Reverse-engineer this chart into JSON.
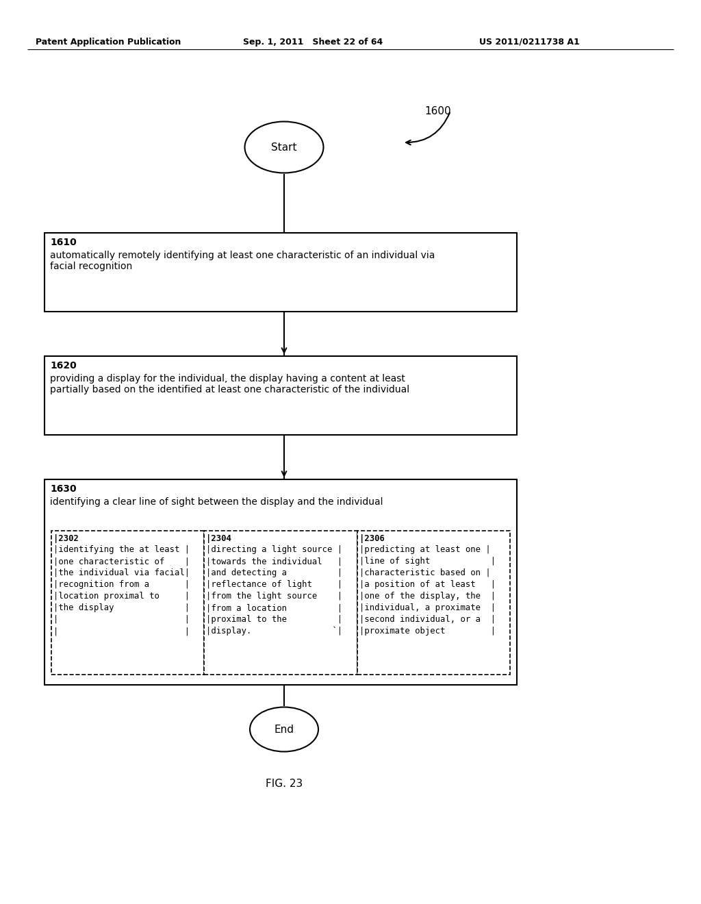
{
  "header_left": "Patent Application Publication",
  "header_mid": "Sep. 1, 2011   Sheet 22 of 64",
  "header_right": "US 2011/0211738 A1",
  "fig_label": "FIG. 23",
  "diagram_label": "1600",
  "start_label": "Start",
  "end_label": "End",
  "box1_num": "1610",
  "box1_text": "automatically remotely identifying at least one characteristic of an individual via\nfacial recognition",
  "box2_num": "1620",
  "box2_text": "providing a display for the individual, the display having a content at least\npartially based on the identified at least one characteristic of the individual",
  "box3_num": "1630",
  "box3_text": "identifying a clear line of sight between the display and the individual",
  "sub1_num": "|2302",
  "sub1_lines": [
    "|identifying the at least |",
    "|one characteristic of    |",
    "|the individual via facial|",
    "|recognition from a       |",
    "|location proximal to     |",
    "|the display              |",
    "|                         |",
    "|                         |"
  ],
  "sub2_num": "|2304",
  "sub2_lines": [
    "|directing a light source |",
    "|towards the individual   |",
    "|and detecting a          |",
    "|reflectance of light     |",
    "|from the light source    |",
    "|from a location          |",
    "|proximal to the          |",
    "|display.                `|"
  ],
  "sub3_num": "|2306",
  "sub3_lines": [
    "|predicting at least one |",
    "|line of sight            |",
    "|characteristic based on |",
    "|a position of at least   |",
    "|one of the display, the  |",
    "|individual, a proximate  |",
    "|second individual, or a  |",
    "|proximate object         |"
  ],
  "bg_color": "#ffffff",
  "text_color": "#000000"
}
